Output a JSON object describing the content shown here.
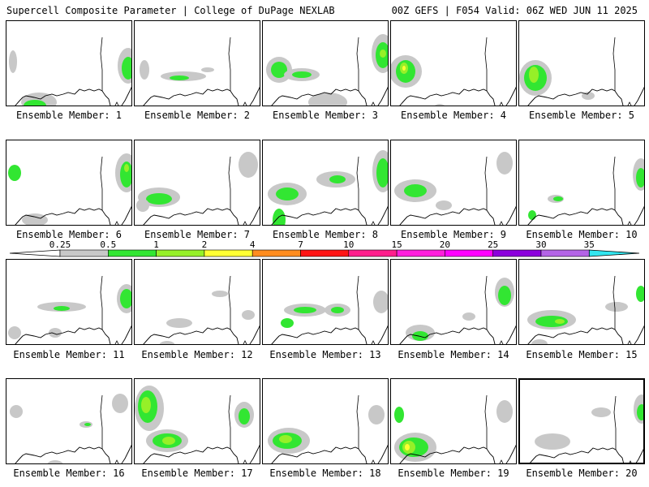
{
  "header": {
    "left": "Supercell Composite Parameter | College of DuPage NEXLAB",
    "right": "00Z GEFS | F054 Valid: 06Z WED JUN 11 2025"
  },
  "colors": {
    "bins": [
      "#c8c8c8",
      "#32e632",
      "#96f028",
      "#ffff32",
      "#ff8c1e",
      "#ff1414",
      "#ff1e8c",
      "#ff1edc",
      "#ff00ff",
      "#8c00dc",
      "#b464e6",
      "#32e6f0"
    ],
    "coast": "#000000"
  },
  "legend": {
    "ticks": [
      "0.25",
      "0.5",
      "1",
      "2",
      "4",
      "7",
      "10",
      "15",
      "20",
      "25",
      "30",
      "35"
    ]
  },
  "selected_member": 20,
  "members": [
    {
      "label": "Ensemble Member: 1",
      "blobs": [
        [
          8,
          50,
          5,
          14,
          0
        ],
        [
          150,
          55,
          13,
          22,
          0
        ],
        [
          150,
          58,
          8,
          14,
          1
        ],
        [
          40,
          100,
          22,
          12,
          0
        ],
        [
          35,
          104,
          14,
          7,
          1
        ]
      ]
    },
    {
      "label": "Ensemble Member: 2",
      "blobs": [
        [
          60,
          68,
          28,
          6,
          0
        ],
        [
          55,
          70,
          12,
          3,
          1
        ],
        [
          12,
          60,
          6,
          12,
          0
        ],
        [
          90,
          60,
          8,
          3,
          0
        ]
      ]
    },
    {
      "label": "Ensemble Member: 3",
      "blobs": [
        [
          20,
          60,
          16,
          16,
          0
        ],
        [
          20,
          60,
          10,
          10,
          1
        ],
        [
          48,
          66,
          22,
          8,
          0
        ],
        [
          48,
          66,
          12,
          4,
          1
        ],
        [
          80,
          100,
          24,
          12,
          0
        ],
        [
          148,
          40,
          14,
          24,
          0
        ],
        [
          148,
          42,
          9,
          16,
          1
        ],
        [
          148,
          40,
          4,
          5,
          2
        ]
      ]
    },
    {
      "label": "Ensemble Member: 4",
      "blobs": [
        [
          18,
          62,
          20,
          20,
          0
        ],
        [
          18,
          62,
          12,
          14,
          1
        ],
        [
          16,
          58,
          5,
          7,
          2
        ],
        [
          16,
          58,
          2,
          3,
          3
        ],
        [
          60,
          108,
          8,
          6,
          0
        ]
      ]
    },
    {
      "label": "Ensemble Member: 5",
      "blobs": [
        [
          20,
          70,
          20,
          22,
          0
        ],
        [
          20,
          70,
          14,
          16,
          1
        ],
        [
          18,
          66,
          6,
          10,
          2
        ],
        [
          12,
          120,
          8,
          10,
          1
        ],
        [
          85,
          92,
          8,
          5,
          0
        ]
      ]
    },
    {
      "label": "Ensemble Member: 6",
      "blobs": [
        [
          10,
          40,
          8,
          10,
          1
        ],
        [
          148,
          40,
          14,
          24,
          0
        ],
        [
          148,
          42,
          8,
          16,
          1
        ],
        [
          148,
          34,
          3,
          5,
          2
        ],
        [
          35,
          98,
          16,
          8,
          0
        ]
      ]
    },
    {
      "label": "Ensemble Member: 7",
      "blobs": [
        [
          30,
          70,
          26,
          12,
          0
        ],
        [
          30,
          72,
          16,
          7,
          1
        ],
        [
          140,
          30,
          12,
          16,
          0
        ],
        [
          10,
          80,
          8,
          8,
          0
        ]
      ]
    },
    {
      "label": "Ensemble Member: 8",
      "blobs": [
        [
          30,
          66,
          24,
          14,
          0
        ],
        [
          30,
          66,
          14,
          8,
          1
        ],
        [
          90,
          48,
          24,
          10,
          0
        ],
        [
          92,
          48,
          10,
          5,
          1
        ],
        [
          148,
          38,
          13,
          26,
          0
        ],
        [
          148,
          40,
          8,
          18,
          1
        ],
        [
          20,
          98,
          8,
          14,
          1
        ]
      ]
    },
    {
      "label": "Ensemble Member: 9",
      "blobs": [
        [
          30,
          62,
          26,
          14,
          0
        ],
        [
          30,
          62,
          14,
          8,
          1
        ],
        [
          65,
          80,
          10,
          6,
          0
        ],
        [
          140,
          28,
          10,
          14,
          0
        ]
      ]
    },
    {
      "label": "Ensemble Member: 10",
      "blobs": [
        [
          150,
          42,
          10,
          20,
          0
        ],
        [
          150,
          46,
          6,
          12,
          1
        ],
        [
          45,
          72,
          10,
          5,
          0
        ],
        [
          48,
          72,
          6,
          3,
          1
        ],
        [
          16,
          92,
          5,
          6,
          1
        ]
      ]
    },
    {
      "label": "Ensemble Member: 11",
      "blobs": [
        [
          148,
          48,
          12,
          18,
          0
        ],
        [
          148,
          48,
          8,
          12,
          1
        ],
        [
          68,
          58,
          30,
          6,
          0
        ],
        [
          68,
          60,
          10,
          3,
          1
        ],
        [
          60,
          90,
          8,
          6,
          0
        ],
        [
          10,
          90,
          8,
          8,
          0
        ]
      ]
    },
    {
      "label": "Ensemble Member: 12",
      "blobs": [
        [
          55,
          78,
          16,
          6,
          0
        ],
        [
          105,
          42,
          10,
          4,
          0
        ],
        [
          140,
          68,
          8,
          6,
          0
        ],
        [
          40,
          106,
          10,
          6,
          0
        ]
      ]
    },
    {
      "label": "Ensemble Member: 13",
      "blobs": [
        [
          52,
          62,
          26,
          8,
          0
        ],
        [
          52,
          62,
          14,
          4,
          1
        ],
        [
          92,
          62,
          16,
          8,
          0
        ],
        [
          92,
          62,
          8,
          4,
          1
        ],
        [
          146,
          52,
          10,
          14,
          0
        ],
        [
          30,
          78,
          8,
          6,
          1
        ]
      ]
    },
    {
      "label": "Ensemble Member: 14",
      "blobs": [
        [
          140,
          40,
          12,
          18,
          0
        ],
        [
          140,
          44,
          8,
          12,
          1
        ],
        [
          36,
          90,
          18,
          10,
          0
        ],
        [
          36,
          94,
          10,
          6,
          1
        ],
        [
          96,
          70,
          8,
          5,
          0
        ]
      ]
    },
    {
      "label": "Ensemble Member: 15",
      "blobs": [
        [
          40,
          74,
          30,
          12,
          0
        ],
        [
          40,
          76,
          20,
          7,
          1
        ],
        [
          50,
          76,
          6,
          3,
          2
        ],
        [
          120,
          58,
          14,
          6,
          0
        ],
        [
          150,
          42,
          6,
          10,
          1
        ],
        [
          25,
          104,
          10,
          6,
          0
        ]
      ]
    },
    {
      "label": "Ensemble Member: 16",
      "blobs": [
        [
          98,
          56,
          8,
          4,
          0
        ],
        [
          100,
          56,
          4,
          2,
          1
        ],
        [
          12,
          40,
          8,
          8,
          0
        ],
        [
          140,
          30,
          10,
          12,
          0
        ],
        [
          60,
          106,
          10,
          6,
          0
        ]
      ]
    },
    {
      "label": "Ensemble Member: 17",
      "blobs": [
        [
          18,
          36,
          18,
          28,
          0
        ],
        [
          16,
          34,
          12,
          20,
          1
        ],
        [
          14,
          32,
          6,
          10,
          2
        ],
        [
          40,
          76,
          26,
          14,
          0
        ],
        [
          40,
          76,
          18,
          9,
          1
        ],
        [
          42,
          76,
          8,
          5,
          2
        ],
        [
          135,
          44,
          12,
          16,
          0
        ],
        [
          135,
          46,
          7,
          10,
          1
        ]
      ]
    },
    {
      "label": "Ensemble Member: 18",
      "blobs": [
        [
          32,
          76,
          26,
          16,
          0
        ],
        [
          30,
          76,
          18,
          10,
          1
        ],
        [
          28,
          74,
          8,
          5,
          2
        ],
        [
          140,
          44,
          10,
          12,
          0
        ]
      ]
    },
    {
      "label": "Ensemble Member: 19",
      "blobs": [
        [
          30,
          84,
          26,
          18,
          0
        ],
        [
          28,
          84,
          18,
          12,
          1
        ],
        [
          22,
          84,
          8,
          8,
          2
        ],
        [
          20,
          84,
          3,
          4,
          3
        ],
        [
          10,
          44,
          6,
          10,
          1
        ],
        [
          140,
          40,
          10,
          14,
          0
        ]
      ]
    },
    {
      "label": "Ensemble Member: 20",
      "blobs": [
        [
          48,
          76,
          10,
          6,
          1
        ],
        [
          40,
          76,
          22,
          10,
          0
        ],
        [
          150,
          36,
          10,
          18,
          0
        ],
        [
          150,
          40,
          6,
          10,
          1
        ],
        [
          100,
          40,
          12,
          6,
          0
        ]
      ]
    }
  ]
}
